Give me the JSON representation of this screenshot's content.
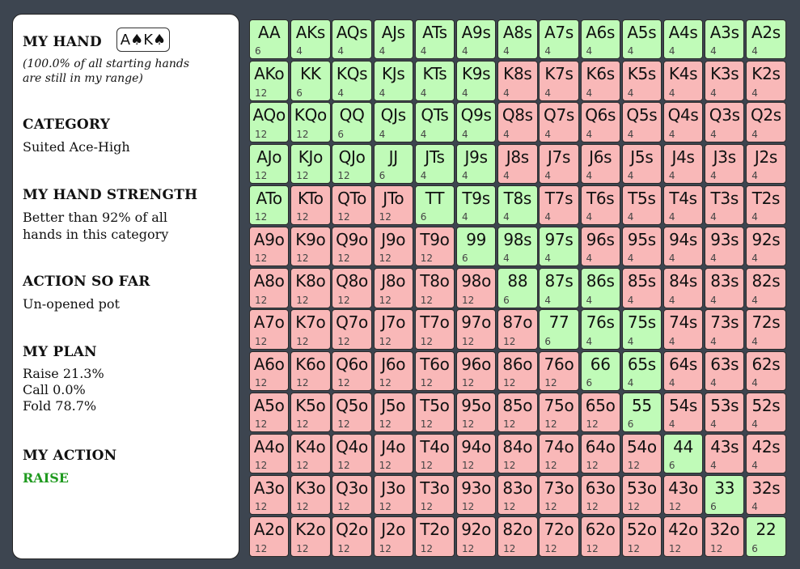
{
  "panel": {
    "my_hand_title": "MY HAND",
    "my_hand_cards": "A♠K♠",
    "range_note_line1": "(100.0% of all starting hands",
    "range_note_line2": "are still in my range)",
    "category_title": "CATEGORY",
    "category_value": "Suited Ace-High",
    "strength_title": "MY HAND STRENGTH",
    "strength_line1": "Better than 92% of all",
    "strength_line2": "hands in this category",
    "action_so_far_title": "ACTION SO FAR",
    "action_so_far_value": "Un-opened pot",
    "plan_title": "MY PLAN",
    "plan_raise": "Raise 21.3%",
    "plan_call": "Call 0.0%",
    "plan_fold": "Fold 78.7%",
    "my_action_title": "MY ACTION",
    "my_action_value": "RAISE"
  },
  "colors": {
    "raise": "#c0fbb8",
    "fold": "#f9b8b8",
    "action_text": "#1f9a1f",
    "background": "#3d4550"
  },
  "grid": {
    "ranks": [
      "A",
      "K",
      "Q",
      "J",
      "T",
      "9",
      "8",
      "7",
      "6",
      "5",
      "4",
      "3",
      "2"
    ],
    "rows": [
      {
        "cells": [
          [
            "AA",
            "6",
            "raise"
          ],
          [
            "AKs",
            "4",
            "raise"
          ],
          [
            "AQs",
            "4",
            "raise"
          ],
          [
            "AJs",
            "4",
            "raise"
          ],
          [
            "ATs",
            "4",
            "raise"
          ],
          [
            "A9s",
            "4",
            "raise"
          ],
          [
            "A8s",
            "4",
            "raise"
          ],
          [
            "A7s",
            "4",
            "raise"
          ],
          [
            "A6s",
            "4",
            "raise"
          ],
          [
            "A5s",
            "4",
            "raise"
          ],
          [
            "A4s",
            "4",
            "raise"
          ],
          [
            "A3s",
            "4",
            "raise"
          ],
          [
            "A2s",
            "4",
            "raise"
          ]
        ]
      },
      {
        "cells": [
          [
            "AKo",
            "12",
            "raise"
          ],
          [
            "KK",
            "6",
            "raise"
          ],
          [
            "KQs",
            "4",
            "raise"
          ],
          [
            "KJs",
            "4",
            "raise"
          ],
          [
            "KTs",
            "4",
            "raise"
          ],
          [
            "K9s",
            "4",
            "raise"
          ],
          [
            "K8s",
            "4",
            "fold"
          ],
          [
            "K7s",
            "4",
            "fold"
          ],
          [
            "K6s",
            "4",
            "fold"
          ],
          [
            "K5s",
            "4",
            "fold"
          ],
          [
            "K4s",
            "4",
            "fold"
          ],
          [
            "K3s",
            "4",
            "fold"
          ],
          [
            "K2s",
            "4",
            "fold"
          ]
        ]
      },
      {
        "cells": [
          [
            "AQo",
            "12",
            "raise"
          ],
          [
            "KQo",
            "12",
            "raise"
          ],
          [
            "QQ",
            "6",
            "raise"
          ],
          [
            "QJs",
            "4",
            "raise"
          ],
          [
            "QTs",
            "4",
            "raise"
          ],
          [
            "Q9s",
            "4",
            "raise"
          ],
          [
            "Q8s",
            "4",
            "fold"
          ],
          [
            "Q7s",
            "4",
            "fold"
          ],
          [
            "Q6s",
            "4",
            "fold"
          ],
          [
            "Q5s",
            "4",
            "fold"
          ],
          [
            "Q4s",
            "4",
            "fold"
          ],
          [
            "Q3s",
            "4",
            "fold"
          ],
          [
            "Q2s",
            "4",
            "fold"
          ]
        ]
      },
      {
        "cells": [
          [
            "AJo",
            "12",
            "raise"
          ],
          [
            "KJo",
            "12",
            "raise"
          ],
          [
            "QJo",
            "12",
            "raise"
          ],
          [
            "JJ",
            "6",
            "raise"
          ],
          [
            "JTs",
            "4",
            "raise"
          ],
          [
            "J9s",
            "4",
            "raise"
          ],
          [
            "J8s",
            "4",
            "fold"
          ],
          [
            "J7s",
            "4",
            "fold"
          ],
          [
            "J6s",
            "4",
            "fold"
          ],
          [
            "J5s",
            "4",
            "fold"
          ],
          [
            "J4s",
            "4",
            "fold"
          ],
          [
            "J3s",
            "4",
            "fold"
          ],
          [
            "J2s",
            "4",
            "fold"
          ]
        ]
      },
      {
        "cells": [
          [
            "ATo",
            "12",
            "raise"
          ],
          [
            "KTo",
            "12",
            "fold"
          ],
          [
            "QTo",
            "12",
            "fold"
          ],
          [
            "JTo",
            "12",
            "fold"
          ],
          [
            "TT",
            "6",
            "raise"
          ],
          [
            "T9s",
            "4",
            "raise"
          ],
          [
            "T8s",
            "4",
            "raise"
          ],
          [
            "T7s",
            "4",
            "fold"
          ],
          [
            "T6s",
            "4",
            "fold"
          ],
          [
            "T5s",
            "4",
            "fold"
          ],
          [
            "T4s",
            "4",
            "fold"
          ],
          [
            "T3s",
            "4",
            "fold"
          ],
          [
            "T2s",
            "4",
            "fold"
          ]
        ]
      },
      {
        "cells": [
          [
            "A9o",
            "12",
            "fold"
          ],
          [
            "K9o",
            "12",
            "fold"
          ],
          [
            "Q9o",
            "12",
            "fold"
          ],
          [
            "J9o",
            "12",
            "fold"
          ],
          [
            "T9o",
            "12",
            "fold"
          ],
          [
            "99",
            "6",
            "raise"
          ],
          [
            "98s",
            "4",
            "raise"
          ],
          [
            "97s",
            "4",
            "raise"
          ],
          [
            "96s",
            "4",
            "fold"
          ],
          [
            "95s",
            "4",
            "fold"
          ],
          [
            "94s",
            "4",
            "fold"
          ],
          [
            "93s",
            "4",
            "fold"
          ],
          [
            "92s",
            "4",
            "fold"
          ]
        ]
      },
      {
        "cells": [
          [
            "A8o",
            "12",
            "fold"
          ],
          [
            "K8o",
            "12",
            "fold"
          ],
          [
            "Q8o",
            "12",
            "fold"
          ],
          [
            "J8o",
            "12",
            "fold"
          ],
          [
            "T8o",
            "12",
            "fold"
          ],
          [
            "98o",
            "12",
            "fold"
          ],
          [
            "88",
            "6",
            "raise"
          ],
          [
            "87s",
            "4",
            "raise"
          ],
          [
            "86s",
            "4",
            "raise"
          ],
          [
            "85s",
            "4",
            "fold"
          ],
          [
            "84s",
            "4",
            "fold"
          ],
          [
            "83s",
            "4",
            "fold"
          ],
          [
            "82s",
            "4",
            "fold"
          ]
        ]
      },
      {
        "cells": [
          [
            "A7o",
            "12",
            "fold"
          ],
          [
            "K7o",
            "12",
            "fold"
          ],
          [
            "Q7o",
            "12",
            "fold"
          ],
          [
            "J7o",
            "12",
            "fold"
          ],
          [
            "T7o",
            "12",
            "fold"
          ],
          [
            "97o",
            "12",
            "fold"
          ],
          [
            "87o",
            "12",
            "fold"
          ],
          [
            "77",
            "6",
            "raise"
          ],
          [
            "76s",
            "4",
            "raise"
          ],
          [
            "75s",
            "4",
            "raise"
          ],
          [
            "74s",
            "4",
            "fold"
          ],
          [
            "73s",
            "4",
            "fold"
          ],
          [
            "72s",
            "4",
            "fold"
          ]
        ]
      },
      {
        "cells": [
          [
            "A6o",
            "12",
            "fold"
          ],
          [
            "K6o",
            "12",
            "fold"
          ],
          [
            "Q6o",
            "12",
            "fold"
          ],
          [
            "J6o",
            "12",
            "fold"
          ],
          [
            "T6o",
            "12",
            "fold"
          ],
          [
            "96o",
            "12",
            "fold"
          ],
          [
            "86o",
            "12",
            "fold"
          ],
          [
            "76o",
            "12",
            "fold"
          ],
          [
            "66",
            "6",
            "raise"
          ],
          [
            "65s",
            "4",
            "raise"
          ],
          [
            "64s",
            "4",
            "fold"
          ],
          [
            "63s",
            "4",
            "fold"
          ],
          [
            "62s",
            "4",
            "fold"
          ]
        ]
      },
      {
        "cells": [
          [
            "A5o",
            "12",
            "fold"
          ],
          [
            "K5o",
            "12",
            "fold"
          ],
          [
            "Q5o",
            "12",
            "fold"
          ],
          [
            "J5o",
            "12",
            "fold"
          ],
          [
            "T5o",
            "12",
            "fold"
          ],
          [
            "95o",
            "12",
            "fold"
          ],
          [
            "85o",
            "12",
            "fold"
          ],
          [
            "75o",
            "12",
            "fold"
          ],
          [
            "65o",
            "12",
            "fold"
          ],
          [
            "55",
            "6",
            "raise"
          ],
          [
            "54s",
            "4",
            "fold"
          ],
          [
            "53s",
            "4",
            "fold"
          ],
          [
            "52s",
            "4",
            "fold"
          ]
        ]
      },
      {
        "cells": [
          [
            "A4o",
            "12",
            "fold"
          ],
          [
            "K4o",
            "12",
            "fold"
          ],
          [
            "Q4o",
            "12",
            "fold"
          ],
          [
            "J4o",
            "12",
            "fold"
          ],
          [
            "T4o",
            "12",
            "fold"
          ],
          [
            "94o",
            "12",
            "fold"
          ],
          [
            "84o",
            "12",
            "fold"
          ],
          [
            "74o",
            "12",
            "fold"
          ],
          [
            "64o",
            "12",
            "fold"
          ],
          [
            "54o",
            "12",
            "fold"
          ],
          [
            "44",
            "6",
            "raise"
          ],
          [
            "43s",
            "4",
            "fold"
          ],
          [
            "42s",
            "4",
            "fold"
          ]
        ]
      },
      {
        "cells": [
          [
            "A3o",
            "12",
            "fold"
          ],
          [
            "K3o",
            "12",
            "fold"
          ],
          [
            "Q3o",
            "12",
            "fold"
          ],
          [
            "J3o",
            "12",
            "fold"
          ],
          [
            "T3o",
            "12",
            "fold"
          ],
          [
            "93o",
            "12",
            "fold"
          ],
          [
            "83o",
            "12",
            "fold"
          ],
          [
            "73o",
            "12",
            "fold"
          ],
          [
            "63o",
            "12",
            "fold"
          ],
          [
            "53o",
            "12",
            "fold"
          ],
          [
            "43o",
            "12",
            "fold"
          ],
          [
            "33",
            "6",
            "raise"
          ],
          [
            "32s",
            "4",
            "fold"
          ]
        ]
      },
      {
        "cells": [
          [
            "A2o",
            "12",
            "fold"
          ],
          [
            "K2o",
            "12",
            "fold"
          ],
          [
            "Q2o",
            "12",
            "fold"
          ],
          [
            "J2o",
            "12",
            "fold"
          ],
          [
            "T2o",
            "12",
            "fold"
          ],
          [
            "92o",
            "12",
            "fold"
          ],
          [
            "82o",
            "12",
            "fold"
          ],
          [
            "72o",
            "12",
            "fold"
          ],
          [
            "62o",
            "12",
            "fold"
          ],
          [
            "52o",
            "12",
            "fold"
          ],
          [
            "42o",
            "12",
            "fold"
          ],
          [
            "32o",
            "12",
            "fold"
          ],
          [
            "22",
            "6",
            "raise"
          ]
        ]
      }
    ]
  }
}
